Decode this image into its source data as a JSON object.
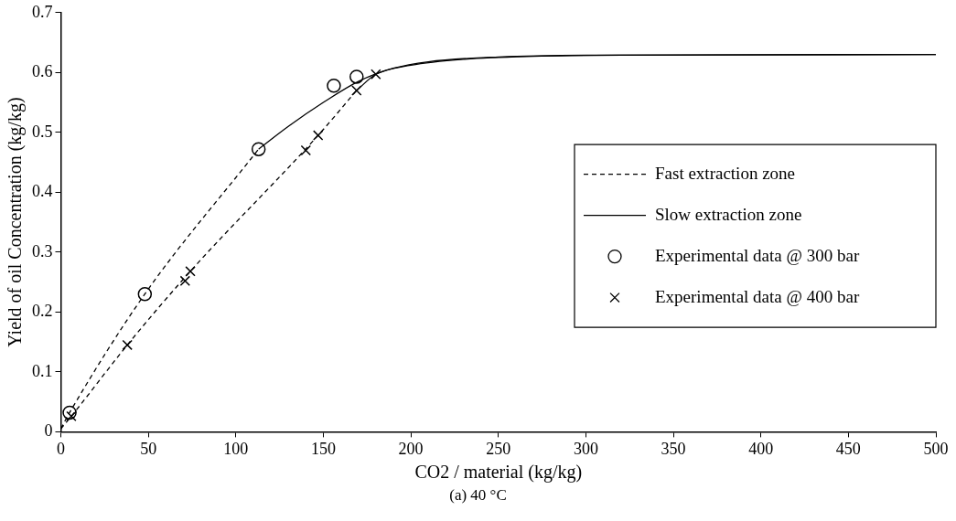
{
  "chart_data": {
    "type": "line",
    "xlabel": "CO2 / material (kg/kg)",
    "ylabel": "Yield of oil Concentration (kg/kg)",
    "annotations": [
      "(a) 40 °C"
    ],
    "xlim": [
      0,
      500
    ],
    "xticks": [
      0,
      50,
      100,
      150,
      200,
      250,
      300,
      350,
      400,
      450,
      500
    ],
    "ylim": [
      0,
      0.7
    ],
    "yticks": [
      0,
      0.1,
      0.2,
      0.3,
      0.4,
      0.5,
      0.6,
      0.7
    ],
    "grid": false,
    "legend": "right",
    "series": [
      {
        "name": "Fast extraction zone",
        "color": "#000000",
        "line_style": "dashed",
        "marker": "none",
        "x": [
          0,
          5,
          48,
          113
        ],
        "values": [
          0.005,
          0.032,
          0.23,
          0.472
        ]
      },
      {
        "color": "#000000",
        "line_style": "dashed",
        "marker": "none",
        "x": [
          0,
          6,
          38,
          74,
          147,
          169
        ],
        "values": [
          0.005,
          0.026,
          0.145,
          0.268,
          0.495,
          0.57
        ]
      },
      {
        "name": "Slow extraction zone",
        "color": "#000000",
        "line_style": "solid",
        "marker": "none",
        "x": [
          113,
          130,
          150,
          170,
          190,
          210,
          250,
          300,
          500
        ],
        "values": [
          0.472,
          0.51,
          0.55,
          0.585,
          0.607,
          0.618,
          0.626,
          0.629,
          0.63
        ]
      },
      {
        "color": "#000000",
        "line_style": "solid",
        "marker": "none",
        "x": [
          169,
          180,
          200,
          230,
          270,
          320,
          500
        ],
        "values": [
          0.57,
          0.597,
          0.612,
          0.622,
          0.627,
          0.629,
          0.63
        ]
      },
      {
        "name": "Experimental data @ 300 bar",
        "type": "scatter",
        "color": "#000000",
        "marker": "circle",
        "x": [
          5,
          48,
          113,
          156,
          169
        ],
        "values": [
          0.032,
          0.23,
          0.472,
          0.578,
          0.593
        ]
      },
      {
        "name": "Experimental data @ 400 bar",
        "type": "scatter",
        "color": "#000000",
        "marker": "cross",
        "x": [
          6,
          38,
          71,
          74,
          140,
          147,
          169,
          180
        ],
        "values": [
          0.026,
          0.145,
          0.252,
          0.268,
          0.47,
          0.495,
          0.57,
          0.597
        ]
      }
    ]
  }
}
